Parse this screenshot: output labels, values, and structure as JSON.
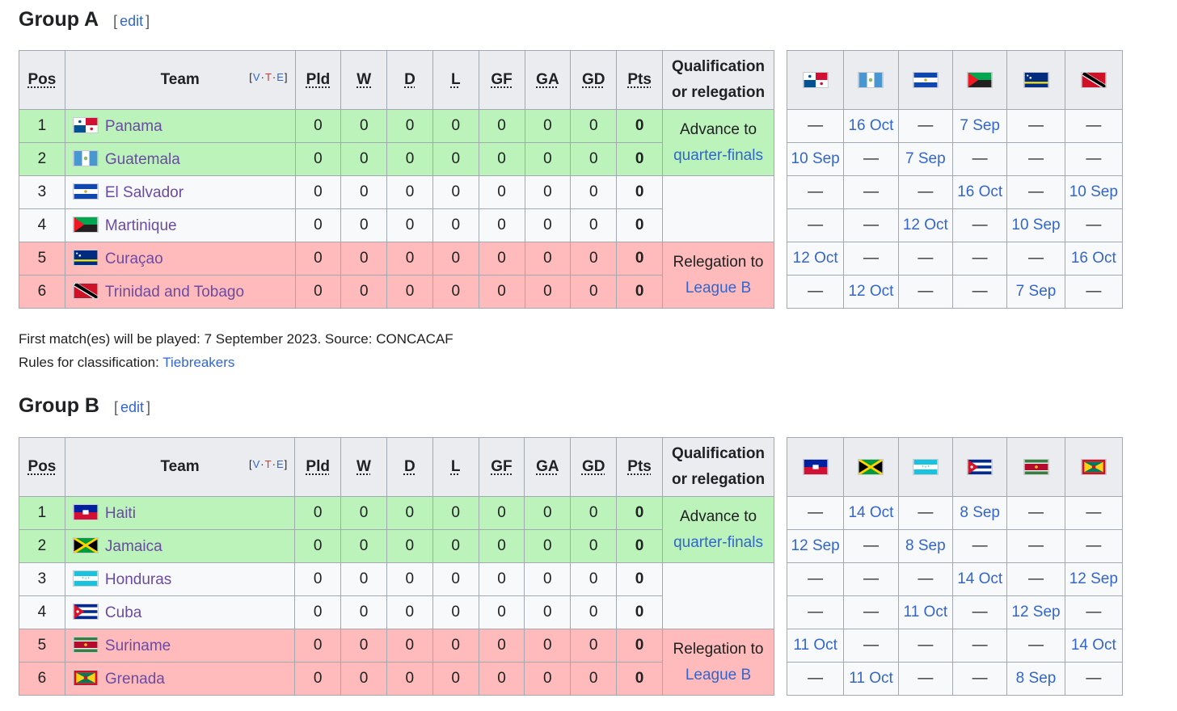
{
  "edit_label": "edit",
  "headers": {
    "pos": "Pos",
    "team": "Team",
    "vte_v": "V",
    "vte_t": "T",
    "vte_e": "E",
    "pld": "Pld",
    "w": "W",
    "d": "D",
    "l": "L",
    "gf": "GF",
    "ga": "GA",
    "gd": "GD",
    "pts": "Pts",
    "qual_line1": "Qualification",
    "qual_line2": "or relegation"
  },
  "qual": {
    "advance_line1": "Advance to",
    "advance_link": "quarter-finals",
    "relegate_line1": "Relegation to",
    "relegate_link": "League B"
  },
  "group_a": {
    "title": "Group A",
    "rows": [
      {
        "pos": "1",
        "team": "Panama",
        "flag": "panama-flag",
        "pld": "0",
        "w": "0",
        "d": "0",
        "l": "0",
        "gf": "0",
        "ga": "0",
        "gd": "0",
        "pts": "0"
      },
      {
        "pos": "2",
        "team": "Guatemala",
        "flag": "guatemala-flag",
        "pld": "0",
        "w": "0",
        "d": "0",
        "l": "0",
        "gf": "0",
        "ga": "0",
        "gd": "0",
        "pts": "0"
      },
      {
        "pos": "3",
        "team": "El Salvador",
        "flag": "el-salvador-flag",
        "pld": "0",
        "w": "0",
        "d": "0",
        "l": "0",
        "gf": "0",
        "ga": "0",
        "gd": "0",
        "pts": "0"
      },
      {
        "pos": "4",
        "team": "Martinique",
        "flag": "martinique-flag",
        "pld": "0",
        "w": "0",
        "d": "0",
        "l": "0",
        "gf": "0",
        "ga": "0",
        "gd": "0",
        "pts": "0"
      },
      {
        "pos": "5",
        "team": "Curaçao",
        "flag": "curacao-flag",
        "pld": "0",
        "w": "0",
        "d": "0",
        "l": "0",
        "gf": "0",
        "ga": "0",
        "gd": "0",
        "pts": "0"
      },
      {
        "pos": "6",
        "team": "Trinidad and Tobago",
        "flag": "trinidad-flag",
        "pld": "0",
        "w": "0",
        "d": "0",
        "l": "0",
        "gf": "0",
        "ga": "0",
        "gd": "0",
        "pts": "0"
      }
    ],
    "results": [
      [
        "—",
        "16 Oct",
        "—",
        "7 Sep",
        "—",
        "—"
      ],
      [
        "10 Sep",
        "—",
        "7 Sep",
        "—",
        "—",
        "—"
      ],
      [
        "—",
        "—",
        "—",
        "16 Oct",
        "—",
        "10 Sep"
      ],
      [
        "—",
        "—",
        "12 Oct",
        "—",
        "10 Sep",
        "—"
      ],
      [
        "12 Oct",
        "—",
        "—",
        "—",
        "—",
        "16 Oct"
      ],
      [
        "—",
        "12 Oct",
        "—",
        "—",
        "7 Sep",
        "—"
      ]
    ]
  },
  "notes": {
    "line1": "First match(es) will be played: 7 September 2023. Source: CONCACAF",
    "line2_prefix": "Rules for classification: ",
    "line2_link": "Tiebreakers"
  },
  "group_b": {
    "title": "Group B",
    "rows": [
      {
        "pos": "1",
        "team": "Haiti",
        "flag": "haiti-flag",
        "pld": "0",
        "w": "0",
        "d": "0",
        "l": "0",
        "gf": "0",
        "ga": "0",
        "gd": "0",
        "pts": "0"
      },
      {
        "pos": "2",
        "team": "Jamaica",
        "flag": "jamaica-flag",
        "pld": "0",
        "w": "0",
        "d": "0",
        "l": "0",
        "gf": "0",
        "ga": "0",
        "gd": "0",
        "pts": "0"
      },
      {
        "pos": "3",
        "team": "Honduras",
        "flag": "honduras-flag",
        "pld": "0",
        "w": "0",
        "d": "0",
        "l": "0",
        "gf": "0",
        "ga": "0",
        "gd": "0",
        "pts": "0"
      },
      {
        "pos": "4",
        "team": "Cuba",
        "flag": "cuba-flag",
        "pld": "0",
        "w": "0",
        "d": "0",
        "l": "0",
        "gf": "0",
        "ga": "0",
        "gd": "0",
        "pts": "0"
      },
      {
        "pos": "5",
        "team": "Suriname",
        "flag": "suriname-flag",
        "pld": "0",
        "w": "0",
        "d": "0",
        "l": "0",
        "gf": "0",
        "ga": "0",
        "gd": "0",
        "pts": "0"
      },
      {
        "pos": "6",
        "team": "Grenada",
        "flag": "grenada-flag",
        "pld": "0",
        "w": "0",
        "d": "0",
        "l": "0",
        "gf": "0",
        "ga": "0",
        "gd": "0",
        "pts": "0"
      }
    ],
    "results": [
      [
        "—",
        "14 Oct",
        "—",
        "8 Sep",
        "—",
        "—"
      ],
      [
        "12 Sep",
        "—",
        "8 Sep",
        "—",
        "—",
        "—"
      ],
      [
        "—",
        "—",
        "—",
        "14 Oct",
        "—",
        "12 Sep"
      ],
      [
        "—",
        "—",
        "11 Oct",
        "—",
        "12 Sep",
        "—"
      ],
      [
        "11 Oct",
        "—",
        "—",
        "—",
        "—",
        "14 Oct"
      ],
      [
        "—",
        "11 Oct",
        "—",
        "—",
        "8 Sep",
        "—"
      ]
    ]
  },
  "colors": {
    "advance": "#bbf3bb",
    "relegate": "#ffbbbb",
    "link": "#3366cc",
    "visited": "#6b4ba1",
    "header_bg": "#eaecf0",
    "border": "#a2a9b1"
  }
}
